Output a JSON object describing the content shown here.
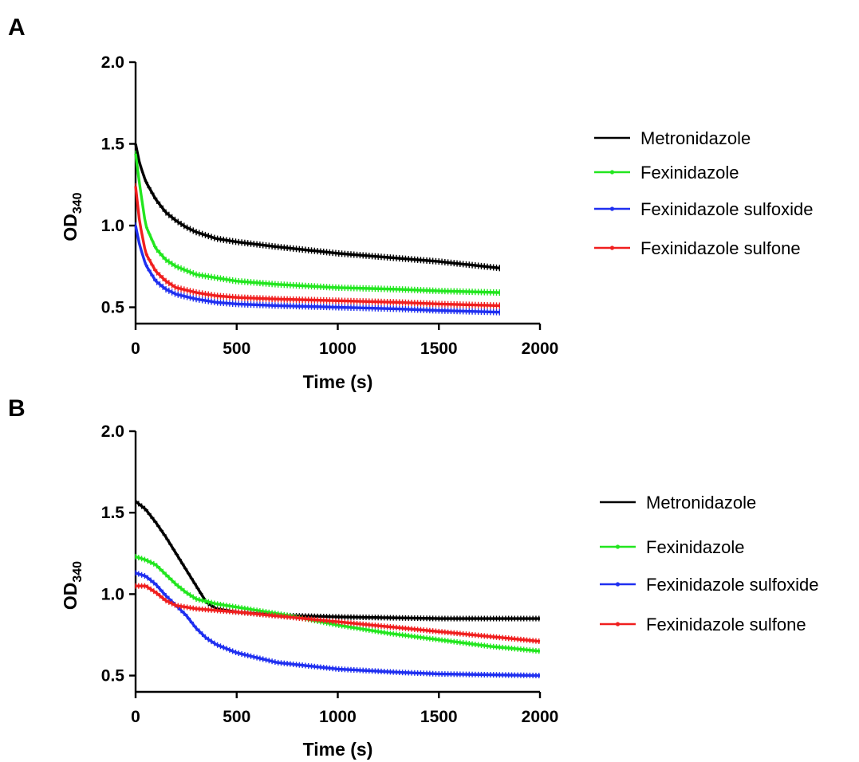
{
  "colors": {
    "Metronidazole": "#000000",
    "Fexinidazole": "#22e61f",
    "Fexinidazole sulfoxide": "#1f2ff0",
    "Fexinidazole sulfone": "#f01e1e"
  },
  "chart_data": [
    {
      "panel": "A",
      "type": "line",
      "xlabel": "Time (s)",
      "ylabel_main": "OD",
      "ylabel_sub": "340",
      "xlim": [
        0,
        2000
      ],
      "ylim": [
        0.4,
        2.0
      ],
      "xticks": [
        "0",
        "500",
        "1000",
        "1500",
        "2000"
      ],
      "yticks": [
        "0.5",
        "1.0",
        "1.5",
        "2.0"
      ],
      "legend": "right",
      "series": [
        {
          "name": "Metronidazole",
          "points": [
            [
              0,
              1.5
            ],
            [
              20,
              1.38
            ],
            [
              50,
              1.27
            ],
            [
              100,
              1.16
            ],
            [
              150,
              1.08
            ],
            [
              200,
              1.03
            ],
            [
              250,
              0.99
            ],
            [
              300,
              0.96
            ],
            [
              400,
              0.92
            ],
            [
              500,
              0.9
            ],
            [
              700,
              0.87
            ],
            [
              1000,
              0.83
            ],
            [
              1300,
              0.8
            ],
            [
              1500,
              0.78
            ],
            [
              1800,
              0.74
            ]
          ]
        },
        {
          "name": "Fexinidazole",
          "points": [
            [
              0,
              1.44
            ],
            [
              20,
              1.25
            ],
            [
              50,
              1.0
            ],
            [
              100,
              0.86
            ],
            [
              150,
              0.79
            ],
            [
              200,
              0.75
            ],
            [
              300,
              0.7
            ],
            [
              400,
              0.68
            ],
            [
              500,
              0.66
            ],
            [
              700,
              0.64
            ],
            [
              1000,
              0.62
            ],
            [
              1300,
              0.61
            ],
            [
              1500,
              0.6
            ],
            [
              1800,
              0.59
            ]
          ]
        },
        {
          "name": "Fexinidazole sulfoxide",
          "points": [
            [
              0,
              1.0
            ],
            [
              20,
              0.88
            ],
            [
              50,
              0.76
            ],
            [
              100,
              0.66
            ],
            [
              150,
              0.61
            ],
            [
              200,
              0.58
            ],
            [
              300,
              0.55
            ],
            [
              400,
              0.53
            ],
            [
              500,
              0.52
            ],
            [
              700,
              0.51
            ],
            [
              1000,
              0.5
            ],
            [
              1300,
              0.49
            ],
            [
              1500,
              0.48
            ],
            [
              1800,
              0.47
            ]
          ]
        },
        {
          "name": "Fexinidazole sulfone",
          "points": [
            [
              0,
              1.24
            ],
            [
              20,
              1.02
            ],
            [
              50,
              0.83
            ],
            [
              100,
              0.72
            ],
            [
              150,
              0.66
            ],
            [
              200,
              0.62
            ],
            [
              300,
              0.59
            ],
            [
              400,
              0.57
            ],
            [
              500,
              0.56
            ],
            [
              700,
              0.55
            ],
            [
              1000,
              0.54
            ],
            [
              1300,
              0.53
            ],
            [
              1500,
              0.52
            ],
            [
              1800,
              0.51
            ]
          ]
        }
      ]
    },
    {
      "panel": "B",
      "type": "line",
      "xlabel": "Time (s)",
      "ylabel_main": "OD",
      "ylabel_sub": "340",
      "xlim": [
        0,
        2000
      ],
      "ylim": [
        0.4,
        2.0
      ],
      "xticks": [
        "0",
        "500",
        "1000",
        "1500",
        "2000"
      ],
      "yticks": [
        "0.5",
        "1.0",
        "1.5",
        "2.0"
      ],
      "legend": "right",
      "series": [
        {
          "name": "Metronidazole",
          "points": [
            [
              0,
              1.57
            ],
            [
              50,
              1.52
            ],
            [
              100,
              1.44
            ],
            [
              150,
              1.35
            ],
            [
              200,
              1.25
            ],
            [
              250,
              1.15
            ],
            [
              300,
              1.05
            ],
            [
              350,
              0.95
            ],
            [
              400,
              0.91
            ],
            [
              500,
              0.89
            ],
            [
              700,
              0.87
            ],
            [
              1000,
              0.86
            ],
            [
              1500,
              0.85
            ],
            [
              2000,
              0.85
            ]
          ]
        },
        {
          "name": "Fexinidazole",
          "points": [
            [
              0,
              1.23
            ],
            [
              50,
              1.21
            ],
            [
              100,
              1.18
            ],
            [
              150,
              1.12
            ],
            [
              200,
              1.06
            ],
            [
              250,
              1.01
            ],
            [
              300,
              0.97
            ],
            [
              400,
              0.94
            ],
            [
              500,
              0.92
            ],
            [
              750,
              0.87
            ],
            [
              1000,
              0.81
            ],
            [
              1250,
              0.76
            ],
            [
              1500,
              0.72
            ],
            [
              1750,
              0.68
            ],
            [
              2000,
              0.65
            ]
          ]
        },
        {
          "name": "Fexinidazole sulfoxide",
          "points": [
            [
              0,
              1.13
            ],
            [
              50,
              1.11
            ],
            [
              100,
              1.06
            ],
            [
              150,
              0.99
            ],
            [
              200,
              0.93
            ],
            [
              250,
              0.87
            ],
            [
              300,
              0.79
            ],
            [
              350,
              0.73
            ],
            [
              400,
              0.69
            ],
            [
              500,
              0.64
            ],
            [
              700,
              0.58
            ],
            [
              1000,
              0.54
            ],
            [
              1300,
              0.52
            ],
            [
              1500,
              0.51
            ],
            [
              2000,
              0.5
            ]
          ]
        },
        {
          "name": "Fexinidazole sulfone",
          "points": [
            [
              0,
              1.05
            ],
            [
              50,
              1.05
            ],
            [
              100,
              1.01
            ],
            [
              150,
              0.96
            ],
            [
              200,
              0.93
            ],
            [
              300,
              0.91
            ],
            [
              400,
              0.9
            ],
            [
              500,
              0.89
            ],
            [
              750,
              0.86
            ],
            [
              1000,
              0.83
            ],
            [
              1250,
              0.8
            ],
            [
              1500,
              0.77
            ],
            [
              1750,
              0.74
            ],
            [
              2000,
              0.71
            ]
          ]
        }
      ]
    }
  ]
}
